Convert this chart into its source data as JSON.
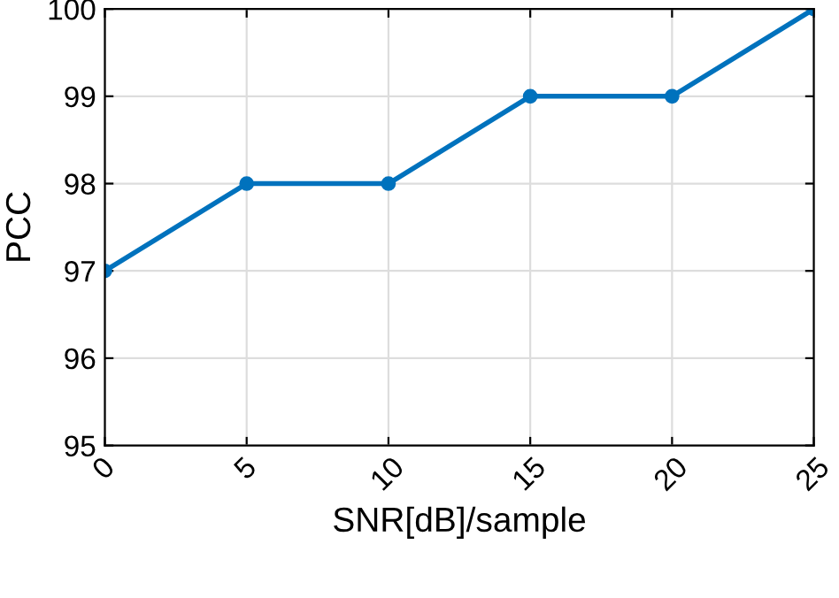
{
  "chart_data": {
    "type": "line",
    "xlabel": "SNR[dB]/sample",
    "ylabel": "PCC",
    "x": [
      0,
      5,
      10,
      15,
      20,
      25
    ],
    "series": [
      {
        "color": "#0072bd",
        "values": [
          97,
          98,
          98,
          99,
          99,
          100
        ]
      }
    ],
    "xlim": [
      0,
      25
    ],
    "xticks": [
      0,
      5,
      10,
      15,
      20,
      25
    ],
    "ylim": [
      95,
      100
    ],
    "yticks": [
      95,
      96,
      97,
      98,
      99,
      100
    ],
    "grid": true,
    "marker": "circle",
    "line_style": "solid"
  }
}
